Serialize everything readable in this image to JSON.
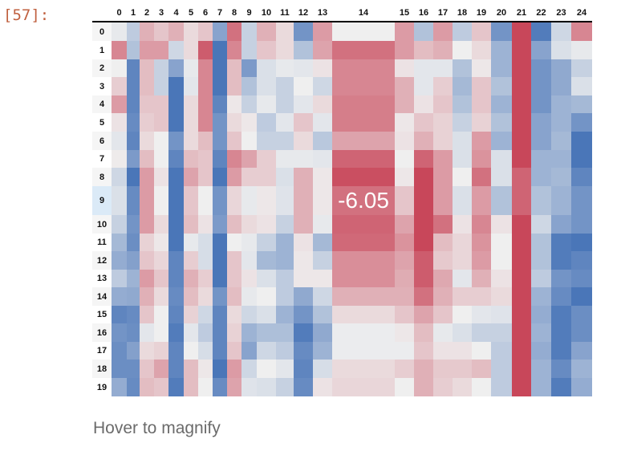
{
  "prompt": "[57]:",
  "hint": "Hover to magnify",
  "columns": [
    "0",
    "1",
    "2",
    "3",
    "4",
    "5",
    "6",
    "7",
    "8",
    "9",
    "10",
    "11",
    "12",
    "13",
    "14",
    "15",
    "16",
    "17",
    "18",
    "19",
    "20",
    "21",
    "22",
    "23",
    "24"
  ],
  "rows": [
    "0",
    "1",
    "2",
    "3",
    "4",
    "5",
    "6",
    "7",
    "8",
    "9",
    "10",
    "11",
    "12",
    "13",
    "14",
    "15",
    "16",
    "17",
    "18",
    "19"
  ],
  "hovered": {
    "row": 9,
    "col": 14,
    "value": "-6.05"
  },
  "colors": {
    "negative": "#c8475a",
    "neutral": "#efefef",
    "positive": "#4a76b8",
    "row_highlight": "#dbeaf7"
  },
  "shade_scale": [
    -4,
    4
  ],
  "shades": [
    [
      0.2,
      1.2,
      -1.5,
      -1,
      -1.5,
      -0.5,
      -1,
      2.5,
      -3,
      1,
      -1.5,
      -0.5,
      3,
      -2,
      0,
      -2,
      1.5,
      -2,
      1.2,
      -1,
      3,
      -4,
      3.8,
      0.8,
      -2.5
    ],
    [
      -2.5,
      1.5,
      -2,
      -2,
      0.8,
      -0.5,
      -3.5,
      4,
      -2.5,
      1,
      -1,
      -0.5,
      1.5,
      -1.8,
      -3,
      -2,
      -1.2,
      -1.5,
      0,
      -0.5,
      2,
      -4,
      2.5,
      0.5,
      0.2
    ],
    [
      0,
      3.5,
      -1.2,
      1,
      2.5,
      0.2,
      -2.5,
      4,
      -1.2,
      2.8,
      0.5,
      0.2,
      0.3,
      -0.3,
      -2.5,
      -0.3,
      0.3,
      0.3,
      1.5,
      -0.2,
      2,
      -4,
      3,
      2.3,
      1
    ],
    [
      -0.8,
      3.5,
      -1.2,
      1,
      4,
      0.3,
      -2.5,
      4,
      -1.2,
      1.5,
      0.5,
      1,
      0,
      0.8,
      -2.5,
      -1.5,
      0.3,
      -0.8,
      1.8,
      -1,
      1.5,
      -4,
      3,
      2.3,
      0.5
    ],
    [
      -2,
      3.5,
      -1,
      -1,
      4,
      -0.5,
      -2.5,
      3.5,
      -0.2,
      1,
      0.2,
      1,
      0.3,
      -0.5,
      -2.7,
      -1.5,
      -0.3,
      -1,
      1.5,
      -1,
      2,
      -4,
      3,
      2,
      1.8
    ],
    [
      -0.3,
      3.3,
      -0.8,
      -1,
      4,
      -0.5,
      -2.5,
      3,
      -0.5,
      -0.2,
      1.2,
      0.3,
      -1,
      0.3,
      -2.7,
      -0.2,
      -1,
      -0.7,
      1,
      -0.7,
      1.5,
      -4,
      2.5,
      2,
      3
    ],
    [
      0.3,
      3.5,
      -0.5,
      0,
      3,
      -0.5,
      -1.2,
      3,
      -1,
      0,
      1,
      1,
      -0.5,
      1.3,
      -1.8,
      -0.3,
      -1.5,
      -0.7,
      0.5,
      -2,
      2,
      -4,
      2.5,
      1.8,
      4
    ],
    [
      -0.1,
      2.8,
      -1.2,
      0,
      3.5,
      -1.2,
      -1,
      3.5,
      -2.5,
      -1.8,
      -0.8,
      0.2,
      0.2,
      0.3,
      -3.3,
      0,
      -3.3,
      -2,
      0.5,
      -2.2,
      0.5,
      -4,
      2,
      2,
      4
    ],
    [
      0.8,
      4,
      -2,
      -0.3,
      4,
      -1.8,
      -1,
      4,
      -2,
      -0.8,
      -0.8,
      0.5,
      -1.5,
      -0.2,
      -3.8,
      -0.2,
      -4,
      -2,
      0,
      -3,
      0.5,
      -3.3,
      2,
      1.8,
      3.5
    ],
    [
      0.5,
      3.3,
      -2,
      0,
      4,
      -1,
      0,
      3,
      -0.6,
      0.2,
      -0.2,
      0.4,
      -1.5,
      -0.2,
      -3,
      -1,
      -4,
      -2,
      0.5,
      -2,
      1.5,
      -3.3,
      1.5,
      2,
      3
    ],
    [
      1,
      3,
      -2,
      -0.5,
      4,
      -1.2,
      -0.3,
      2.8,
      -1.2,
      -0.5,
      -0.3,
      1,
      -1.5,
      0.2,
      -3.3,
      -1.8,
      -4,
      -3,
      -0.3,
      -2.5,
      -0.3,
      -4,
      0.8,
      2.5,
      3
    ],
    [
      1.8,
      3.2,
      -0.7,
      -0.2,
      4,
      0.2,
      0.6,
      4,
      0,
      0.2,
      1,
      2,
      -0.3,
      1.8,
      -3.2,
      -2.2,
      -4,
      -1.2,
      -0.6,
      -2.2,
      0,
      -4,
      1.5,
      3.8,
      4
    ],
    [
      2.2,
      2.6,
      -1,
      -0.6,
      3.5,
      -0.8,
      0.6,
      4,
      -1,
      0.3,
      1.8,
      2,
      -0.2,
      1,
      -2.3,
      -1.8,
      -3.5,
      -0.9,
      -0.6,
      -2,
      0,
      -4,
      1.5,
      3.8,
      3.5
    ],
    [
      1.2,
      2,
      -2,
      -1,
      3.5,
      -1.5,
      -0.8,
      4,
      -1,
      -0.3,
      0.5,
      1.2,
      -0.2,
      -0.2,
      -2.3,
      -1.6,
      -3.5,
      -1.7,
      0.3,
      -1.5,
      -0.3,
      -4,
      1.2,
      3,
      3.3
    ],
    [
      2.2,
      2.3,
      -1.5,
      -0.5,
      3.3,
      -1.2,
      -0.5,
      3,
      -1.2,
      0.2,
      0,
      1.2,
      2.3,
      0.8,
      -1.5,
      -1.5,
      -3,
      -1.5,
      -0.8,
      -0.8,
      -0.5,
      -4,
      2,
      3.3,
      4
    ],
    [
      3.5,
      3.3,
      -1,
      0,
      3.5,
      -0.7,
      0.8,
      3.5,
      -0.5,
      0.8,
      0.5,
      2,
      3,
      1.5,
      -0.5,
      -1,
      -1.8,
      -1,
      0,
      0.3,
      0.4,
      -4,
      2.2,
      3.8,
      3.2
    ],
    [
      3,
      3.2,
      0.3,
      0,
      3.8,
      0.3,
      1.2,
      3.5,
      -0.7,
      2,
      1.6,
      1.6,
      3.8,
      2.3,
      0.1,
      -0.2,
      -1.2,
      0.2,
      0.5,
      1,
      1,
      -4,
      2,
      3.8,
      3.2
    ],
    [
      3.2,
      2.6,
      -0.5,
      -0.7,
      3.5,
      0,
      0.6,
      3.5,
      -1,
      2.5,
      0.8,
      1.2,
      3.3,
      2,
      0.1,
      0.1,
      -1,
      -0.3,
      -0.3,
      0,
      1.2,
      -4,
      2.2,
      3.8,
      2.5
    ],
    [
      3.2,
      3.2,
      -1,
      -1.8,
      3.5,
      -1.2,
      -0.2,
      4,
      -2,
      0.8,
      0,
      0.3,
      3.5,
      0.6,
      -0.5,
      -0.8,
      -1.5,
      -0.9,
      -0.9,
      -1.2,
      1.2,
      -4,
      2,
      3.3,
      2
    ],
    [
      2.2,
      3.3,
      -1.2,
      -1,
      3.8,
      -1.2,
      0,
      3.3,
      -1.8,
      0.4,
      0.5,
      1,
      3.3,
      -0.3,
      -0.6,
      0,
      -1.5,
      -0.8,
      -0.5,
      0,
      1.2,
      -4,
      2,
      3.8,
      2.2
    ]
  ]
}
